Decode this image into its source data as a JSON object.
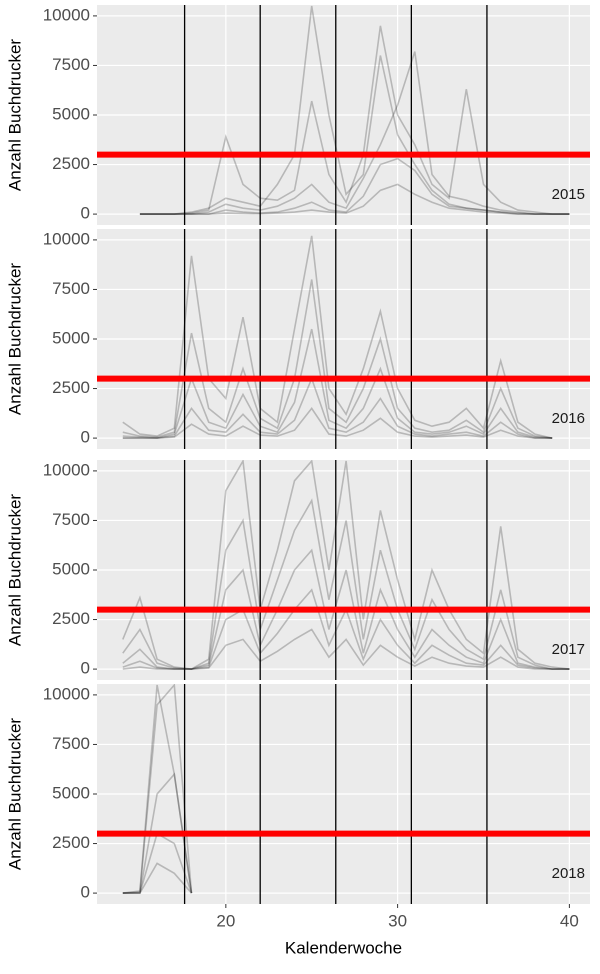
{
  "chart_data": {
    "type": "line",
    "ylabel": "Anzahl Buchdrucker",
    "xlabel": "Kalenderwoche",
    "xlim": [
      12.5,
      41.2
    ],
    "xticks": [
      20,
      30,
      40
    ],
    "ylim": [
      -550,
      10550
    ],
    "yticks": [
      0,
      2500,
      5000,
      7500,
      10000
    ],
    "grid": true,
    "line_color": "#000000",
    "line_alpha": 0.22,
    "hline": 3000,
    "hline_color": "#ff0000",
    "vlines": [
      17.6,
      22.0,
      26.4,
      30.8,
      35.2
    ],
    "panels": [
      {
        "label": "2015",
        "x": [
          15,
          16,
          17,
          18,
          19,
          20,
          21,
          22,
          23,
          24,
          25,
          26,
          27,
          28,
          29,
          30,
          31,
          32,
          33,
          34,
          35,
          36,
          37,
          38,
          39,
          40
        ],
        "series": [
          {
            "values": [
              0,
              0,
              0,
              100,
              300,
              800,
              600,
              400,
              1500,
              3000,
              10500,
              5000,
              1000,
              2000,
              8000,
              4000,
              2500,
              1200,
              500,
              300,
              200,
              100,
              50,
              0,
              0,
              0
            ]
          },
          {
            "values": [
              0,
              0,
              0,
              50,
              200,
              3900,
              1500,
              800,
              700,
              1200,
              5700,
              2000,
              600,
              3000,
              9500,
              5000,
              3500,
              1500,
              800,
              6300,
              1500,
              600,
              200,
              100,
              0,
              0
            ]
          },
          {
            "values": [
              0,
              0,
              0,
              0,
              100,
              500,
              300,
              200,
              400,
              800,
              1500,
              600,
              300,
              1800,
              3500,
              5500,
              8200,
              2000,
              900,
              700,
              400,
              200,
              100,
              0,
              0,
              0
            ]
          },
          {
            "values": [
              0,
              0,
              0,
              0,
              0,
              200,
              100,
              50,
              100,
              300,
              600,
              200,
              100,
              900,
              2500,
              2800,
              2200,
              1000,
              400,
              300,
              200,
              100,
              0,
              0,
              0,
              0
            ]
          },
          {
            "values": [
              0,
              0,
              0,
              0,
              0,
              50,
              30,
              20,
              50,
              100,
              200,
              100,
              50,
              400,
              1200,
              1500,
              1000,
              600,
              300,
              200,
              100,
              50,
              0,
              0,
              0,
              0
            ]
          }
        ]
      },
      {
        "label": "2016",
        "x": [
          14,
          15,
          16,
          17,
          18,
          19,
          20,
          21,
          22,
          23,
          24,
          25,
          26,
          27,
          28,
          29,
          30,
          31,
          32,
          33,
          34,
          35,
          36,
          37,
          38,
          39
        ],
        "series": [
          {
            "values": [
              800,
              200,
              100,
              500,
              9200,
              3000,
              2000,
              6100,
              1500,
              800,
              5500,
              10200,
              2500,
              1200,
              3500,
              6400,
              2500,
              900,
              600,
              800,
              1500,
              500,
              3900,
              800,
              200,
              0
            ]
          },
          {
            "values": [
              300,
              100,
              50,
              300,
              5300,
              1500,
              800,
              3500,
              1000,
              500,
              3000,
              8000,
              1500,
              800,
              2500,
              5000,
              1500,
              500,
              300,
              400,
              900,
              300,
              2500,
              500,
              100,
              0
            ]
          },
          {
            "values": [
              100,
              50,
              0,
              200,
              3000,
              800,
              500,
              2200,
              600,
              300,
              1800,
              5500,
              900,
              500,
              1500,
              3500,
              1000,
              300,
              200,
              300,
              600,
              200,
              1500,
              300,
              50,
              0
            ]
          },
          {
            "values": [
              0,
              0,
              0,
              100,
              1500,
              400,
              300,
              1200,
              300,
              200,
              900,
              3000,
              500,
              300,
              800,
              2000,
              600,
              200,
              100,
              200,
              300,
              100,
              800,
              200,
              0,
              0
            ]
          },
          {
            "values": [
              0,
              0,
              0,
              50,
              700,
              200,
              100,
              600,
              150,
              100,
              400,
              1500,
              200,
              100,
              400,
              1000,
              300,
              100,
              50,
              100,
              150,
              50,
              400,
              100,
              0,
              0
            ]
          }
        ]
      },
      {
        "label": "2017",
        "x": [
          14,
          15,
          16,
          17,
          18,
          19,
          20,
          21,
          22,
          23,
          24,
          25,
          26,
          27,
          28,
          29,
          30,
          31,
          32,
          33,
          34,
          35,
          36,
          37,
          38,
          39,
          40
        ],
        "series": [
          {
            "values": [
              1500,
              3600,
              500,
              100,
              0,
              500,
              9000,
              10500,
              3000,
              6000,
              9500,
              10500,
              5000,
              10500,
              2500,
              8000,
              4500,
              1500,
              5000,
              3000,
              1500,
              800,
              7200,
              1000,
              300,
              100,
              0
            ]
          },
          {
            "values": [
              800,
              2000,
              300,
              50,
              0,
              300,
              6000,
              7500,
              2000,
              4500,
              7000,
              8500,
              3500,
              7500,
              1500,
              6000,
              3000,
              1000,
              3500,
              2000,
              1000,
              500,
              4000,
              600,
              200,
              0,
              0
            ]
          },
          {
            "values": [
              300,
              1000,
              100,
              0,
              0,
              200,
              4000,
              5000,
              1200,
              3000,
              5000,
              6000,
              2000,
              5000,
              800,
              4000,
              2000,
              600,
              2000,
              1200,
              600,
              300,
              2500,
              300,
              100,
              0,
              0
            ]
          },
          {
            "values": [
              100,
              400,
              50,
              0,
              0,
              100,
              2500,
              3000,
              800,
              1800,
              3000,
              4000,
              1200,
              3000,
              500,
              2500,
              1200,
              300,
              1200,
              700,
              300,
              200,
              1200,
              200,
              50,
              0,
              0
            ]
          },
          {
            "values": [
              0,
              100,
              0,
              0,
              0,
              50,
              1200,
              1500,
              400,
              900,
              1500,
              2000,
              600,
              1500,
              200,
              1200,
              600,
              150,
              600,
              300,
              150,
              100,
              600,
              100,
              0,
              0,
              0
            ]
          }
        ]
      },
      {
        "label": "2018",
        "x": [
          14,
          15,
          16,
          17,
          18
        ],
        "series": [
          {
            "values": [
              0,
              100,
              10500,
              6000,
              0
            ]
          },
          {
            "values": [
              0,
              50,
              9500,
              10500,
              0
            ]
          },
          {
            "values": [
              0,
              0,
              5000,
              6000,
              0
            ]
          },
          {
            "values": [
              0,
              0,
              3000,
              2500,
              0
            ]
          },
          {
            "values": [
              0,
              0,
              1500,
              1000,
              0
            ]
          }
        ]
      }
    ]
  }
}
